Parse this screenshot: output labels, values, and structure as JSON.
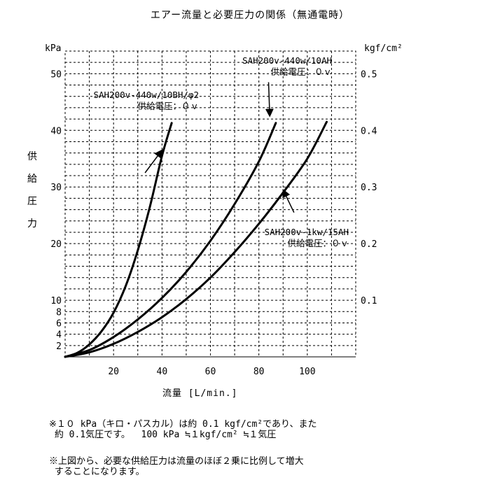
{
  "title": "エアー流量と必要圧力の関係（無通電時）",
  "unit_left": "kPa",
  "unit_right": "kgf/cm²",
  "y_axis_label": "供\n給\n圧\n力",
  "x_axis_label": "流量 [L/min.]",
  "notes": [
    "※１０ kPa（キロ・パスカル）は約 0.1 kgf/cm²であり、また\n 約 0.1気圧です。  100 kPa ≒１kgf/cm² ≒１気圧",
    "※上図から、必要な供給圧力は流量のほぼ２乗に比例して増大\n することになります。"
  ],
  "chart_data": {
    "type": "line",
    "title": "エアー流量と必要圧力の関係（無通電時）",
    "xlabel": "流量 [L/min.]",
    "ylabel": "供給圧力",
    "y_unit": "kPa",
    "y2_unit": "kgf/cm²",
    "xlim": [
      0,
      120
    ],
    "ylim": [
      0,
      54
    ],
    "x_ticks": [
      20,
      40,
      60,
      80,
      100
    ],
    "y_ticks": [
      2,
      4,
      6,
      8,
      10,
      20,
      30,
      40,
      50
    ],
    "y2_ticks": [
      {
        "at": 10,
        "label": "0.1"
      },
      {
        "at": 20,
        "label": "0.2"
      },
      {
        "at": 30,
        "label": "0.3"
      },
      {
        "at": 40,
        "label": "0.4"
      },
      {
        "at": 50,
        "label": "0.5"
      }
    ],
    "grid": true,
    "series": [
      {
        "name": "SAH200v-440w/10BH/φ2\n供給電圧：０ｖ",
        "x": [
          0,
          5,
          10,
          15,
          20,
          25,
          30,
          35,
          40,
          44
        ],
        "y": [
          0,
          0.7,
          2.2,
          4.5,
          7.8,
          12.5,
          18.8,
          26.5,
          35.5,
          41.3
        ]
      },
      {
        "name": "SAH200v-440w/10AH\n供給電圧：０ｖ",
        "x": [
          0,
          10,
          20,
          30,
          40,
          50,
          60,
          70,
          80,
          87
        ],
        "y": [
          0,
          1.2,
          3.5,
          6.6,
          10.4,
          15.0,
          20.5,
          27.0,
          34.5,
          41.3
        ]
      },
      {
        "name": "SAH200v-1kw/15AH\n供給電圧：０ｖ",
        "x": [
          0,
          10,
          20,
          30,
          40,
          50,
          60,
          70,
          80,
          90,
          100,
          108
        ],
        "y": [
          0,
          0.8,
          2.3,
          4.4,
          7.0,
          10.2,
          14.0,
          18.5,
          23.5,
          29.0,
          35.0,
          41.5
        ]
      }
    ]
  }
}
